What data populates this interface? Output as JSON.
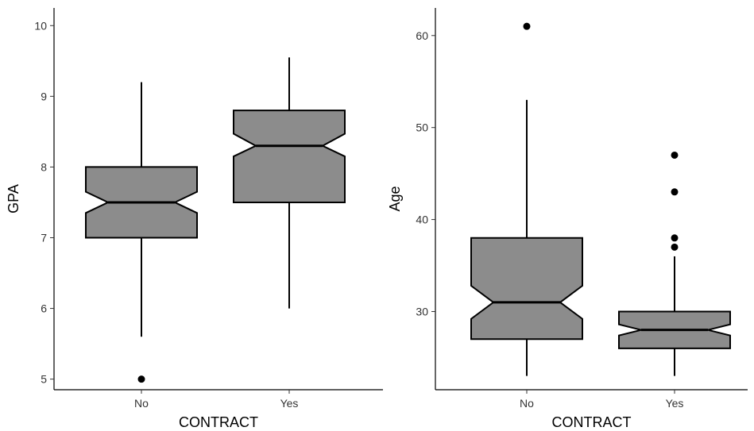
{
  "colors": {
    "box_fill": "#8c8c8c",
    "stroke": "#000000",
    "text": "#333333"
  },
  "chart_data": [
    {
      "type": "boxplot",
      "notched": true,
      "xlabel": "CONTRACT",
      "ylabel": "GPA",
      "ylim": [
        4.85,
        10.25
      ],
      "yticks": [
        5,
        6,
        7,
        8,
        9,
        10
      ],
      "categories": [
        "No",
        "Yes"
      ],
      "boxes": [
        {
          "category": "No",
          "lower_whisker": 5.6,
          "q1": 7.0,
          "median": 7.5,
          "q3": 8.0,
          "upper_whisker": 9.2,
          "notch_low": 7.35,
          "notch_high": 7.65,
          "outliers": [
            5.0
          ]
        },
        {
          "category": "Yes",
          "lower_whisker": 6.0,
          "q1": 7.5,
          "median": 8.3,
          "q3": 8.8,
          "upper_whisker": 9.55,
          "notch_low": 8.15,
          "notch_high": 8.47,
          "outliers": []
        }
      ],
      "grid": false
    },
    {
      "type": "boxplot",
      "notched": true,
      "xlabel": "CONTRACT",
      "ylabel": "Age",
      "ylim": [
        21.5,
        63
      ],
      "yticks": [
        30,
        40,
        50,
        60
      ],
      "categories": [
        "No",
        "Yes"
      ],
      "boxes": [
        {
          "category": "No",
          "lower_whisker": 23,
          "q1": 27,
          "median": 31,
          "q3": 38,
          "upper_whisker": 53,
          "notch_low": 29.2,
          "notch_high": 32.8,
          "outliers": [
            61
          ]
        },
        {
          "category": "Yes",
          "lower_whisker": 23,
          "q1": 26,
          "median": 28,
          "q3": 30,
          "upper_whisker": 36,
          "notch_low": 27.4,
          "notch_high": 28.6,
          "outliers": [
            37,
            38,
            43,
            47
          ]
        }
      ],
      "grid": false
    }
  ]
}
